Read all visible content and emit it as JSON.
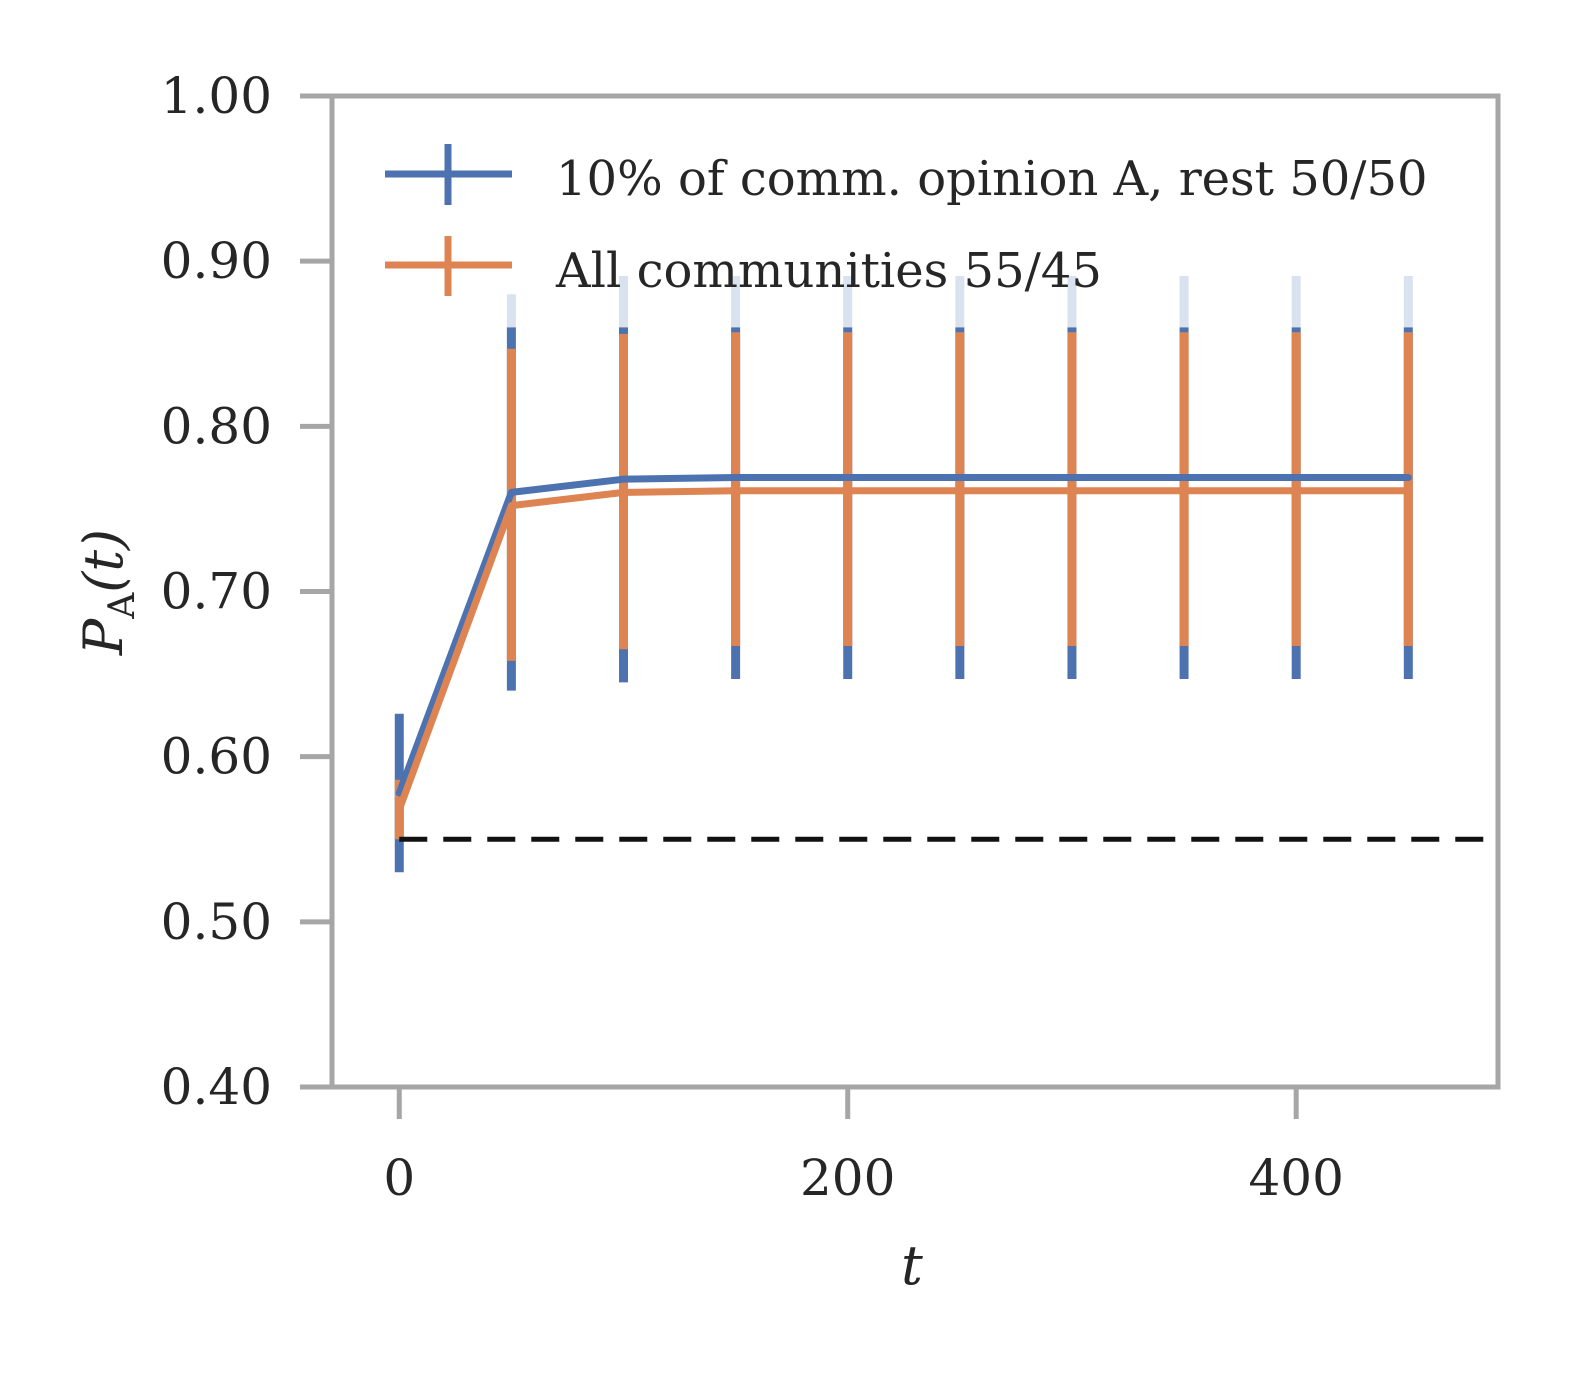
{
  "chart_data": {
    "type": "line",
    "xlabel": "t",
    "ylabel": {
      "main": "P",
      "sub": "A",
      "rest": "(t)"
    },
    "xlim": [
      -30,
      490
    ],
    "ylim": [
      0.4,
      1.0
    ],
    "xticks": [
      0,
      200,
      400
    ],
    "yticks": [
      0.4,
      0.5,
      0.6,
      0.7,
      0.8,
      0.9,
      1.0
    ],
    "ytick_labels": [
      "0.40",
      "0.50",
      "0.60",
      "0.70",
      "0.80",
      "0.90",
      "1.00"
    ],
    "grid": false,
    "legend_position": "top-left",
    "reference_line": {
      "y": 0.55,
      "x": [
        0,
        490
      ],
      "style": "dashed",
      "color": "#111111"
    },
    "x": [
      0,
      50,
      100,
      150,
      200,
      250,
      300,
      350,
      400,
      450
    ],
    "series": [
      {
        "name": "10% of comm. opinion A, rest 50/50",
        "color": "#4C72B0",
        "values": [
          0.578,
          0.76,
          0.768,
          0.769,
          0.769,
          0.769,
          0.769,
          0.769,
          0.769,
          0.769
        ],
        "err_low": [
          0.53,
          0.64,
          0.645,
          0.647,
          0.647,
          0.647,
          0.647,
          0.647,
          0.647,
          0.647
        ],
        "err_high": [
          0.626,
          0.88,
          0.891,
          0.891,
          0.891,
          0.891,
          0.891,
          0.891,
          0.891,
          0.891
        ]
      },
      {
        "name": "All communities 55/45",
        "color": "#DD8452",
        "values": [
          0.568,
          0.752,
          0.76,
          0.761,
          0.761,
          0.761,
          0.761,
          0.761,
          0.761,
          0.761
        ],
        "err_low": [
          0.55,
          0.658,
          0.665,
          0.667,
          0.667,
          0.667,
          0.667,
          0.667,
          0.667,
          0.667
        ],
        "err_high": [
          0.586,
          0.847,
          0.856,
          0.857,
          0.857,
          0.857,
          0.857,
          0.857,
          0.857,
          0.857
        ]
      }
    ]
  }
}
